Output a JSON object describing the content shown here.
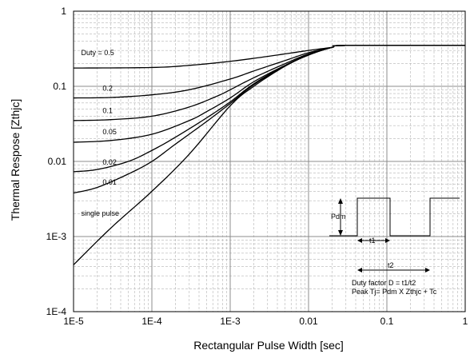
{
  "chart_data": {
    "type": "line",
    "xlabel": "Rectangular Pulse Width [sec]",
    "ylabel": "Thermal Respose [Zthjc]",
    "xscale": "log",
    "yscale": "log",
    "xlim": [
      1e-05,
      1
    ],
    "ylim": [
      0.0001,
      1
    ],
    "grid": true,
    "xticks": [
      {
        "v": 1e-05,
        "label": "1E-5"
      },
      {
        "v": 0.0001,
        "label": "1E-4"
      },
      {
        "v": 0.001,
        "label": "1E-3"
      },
      {
        "v": 0.01,
        "label": "0.01"
      },
      {
        "v": 0.1,
        "label": "0.1"
      },
      {
        "v": 1,
        "label": "1"
      }
    ],
    "yticks": [
      {
        "v": 0.0001,
        "label": "1E-4"
      },
      {
        "v": 0.001,
        "label": "1E-3"
      },
      {
        "v": 0.01,
        "label": "0.01"
      },
      {
        "v": 0.1,
        "label": "0.1"
      },
      {
        "v": 1,
        "label": "1"
      }
    ],
    "series": [
      {
        "name": "Duty = 0.5",
        "values": [
          [
            1e-05,
            0.175
          ],
          [
            0.0001,
            0.178
          ],
          [
            0.0003,
            0.19
          ],
          [
            0.001,
            0.215
          ],
          [
            0.003,
            0.25
          ],
          [
            0.01,
            0.3
          ],
          [
            0.02,
            0.33
          ],
          [
            0.03,
            0.35
          ],
          [
            1,
            0.35
          ]
        ]
      },
      {
        "name": "0.2",
        "values": [
          [
            1e-05,
            0.07
          ],
          [
            3e-05,
            0.071
          ],
          [
            0.0001,
            0.077
          ],
          [
            0.0003,
            0.09
          ],
          [
            0.001,
            0.125
          ],
          [
            0.002,
            0.16
          ],
          [
            0.005,
            0.22
          ],
          [
            0.01,
            0.28
          ],
          [
            0.02,
            0.33
          ],
          [
            0.03,
            0.35
          ],
          [
            1,
            0.35
          ]
        ]
      },
      {
        "name": "0.1",
        "values": [
          [
            1e-05,
            0.035
          ],
          [
            3e-05,
            0.036
          ],
          [
            0.0001,
            0.04
          ],
          [
            0.0003,
            0.053
          ],
          [
            0.0007,
            0.075
          ],
          [
            0.001,
            0.09
          ],
          [
            0.002,
            0.13
          ],
          [
            0.005,
            0.2
          ],
          [
            0.01,
            0.27
          ],
          [
            0.02,
            0.33
          ],
          [
            0.03,
            0.35
          ],
          [
            1,
            0.35
          ]
        ]
      },
      {
        "name": "0.05",
        "values": [
          [
            1e-05,
            0.018
          ],
          [
            3e-05,
            0.019
          ],
          [
            0.0001,
            0.023
          ],
          [
            0.0003,
            0.035
          ],
          [
            0.0005,
            0.046
          ],
          [
            0.001,
            0.07
          ],
          [
            0.002,
            0.115
          ],
          [
            0.005,
            0.19
          ],
          [
            0.01,
            0.265
          ],
          [
            0.02,
            0.33
          ],
          [
            0.03,
            0.35
          ],
          [
            1,
            0.35
          ]
        ]
      },
      {
        "name": "0.02",
        "values": [
          [
            1e-05,
            0.0073
          ],
          [
            2e-05,
            0.0078
          ],
          [
            5e-05,
            0.01
          ],
          [
            0.0001,
            0.014
          ],
          [
            0.0002,
            0.021
          ],
          [
            0.0005,
            0.038
          ],
          [
            0.001,
            0.062
          ],
          [
            0.002,
            0.108
          ],
          [
            0.005,
            0.188
          ],
          [
            0.01,
            0.263
          ],
          [
            0.02,
            0.33
          ],
          [
            0.03,
            0.35
          ],
          [
            1,
            0.35
          ]
        ]
      },
      {
        "name": "0.01",
        "values": [
          [
            1e-05,
            0.0038
          ],
          [
            2e-05,
            0.0045
          ],
          [
            5e-05,
            0.0068
          ],
          [
            0.0001,
            0.01
          ],
          [
            0.0002,
            0.017
          ],
          [
            0.0005,
            0.034
          ],
          [
            0.001,
            0.059
          ],
          [
            0.002,
            0.105
          ],
          [
            0.005,
            0.186
          ],
          [
            0.01,
            0.262
          ],
          [
            0.02,
            0.33
          ],
          [
            0.03,
            0.35
          ],
          [
            1,
            0.35
          ]
        ]
      },
      {
        "name": "single pulse",
        "values": [
          [
            1e-05,
            0.00042
          ],
          [
            3e-05,
            0.0013
          ],
          [
            0.0001,
            0.004
          ],
          [
            0.0003,
            0.0125
          ],
          [
            0.001,
            0.055
          ],
          [
            0.002,
            0.1
          ],
          [
            0.005,
            0.185
          ],
          [
            0.01,
            0.26
          ],
          [
            0.02,
            0.33
          ],
          [
            0.03,
            0.35
          ],
          [
            1,
            0.35
          ]
        ]
      }
    ],
    "series_labels": [
      {
        "text": "Duty = 0.5",
        "x": 1.25e-05,
        "y": 0.26
      },
      {
        "text": "0.2",
        "x": 2.35e-05,
        "y": 0.087
      },
      {
        "text": "0.1",
        "x": 2.35e-05,
        "y": 0.044
      },
      {
        "text": "0.05",
        "x": 2.35e-05,
        "y": 0.023
      },
      {
        "text": "0.02",
        "x": 2.35e-05,
        "y": 0.0091
      },
      {
        "text": "0.01",
        "x": 2.35e-05,
        "y": 0.0049
      },
      {
        "text": "single pulse",
        "x": 1.25e-05,
        "y": 0.0019
      }
    ],
    "inset": {
      "pdm_label": "Pdm",
      "t1_label": "t1",
      "t2_label": "t2",
      "line1": "Duty factor D = t1/t2",
      "line2": "Peak Tj= Pdm X Zthjc + Tc"
    }
  }
}
